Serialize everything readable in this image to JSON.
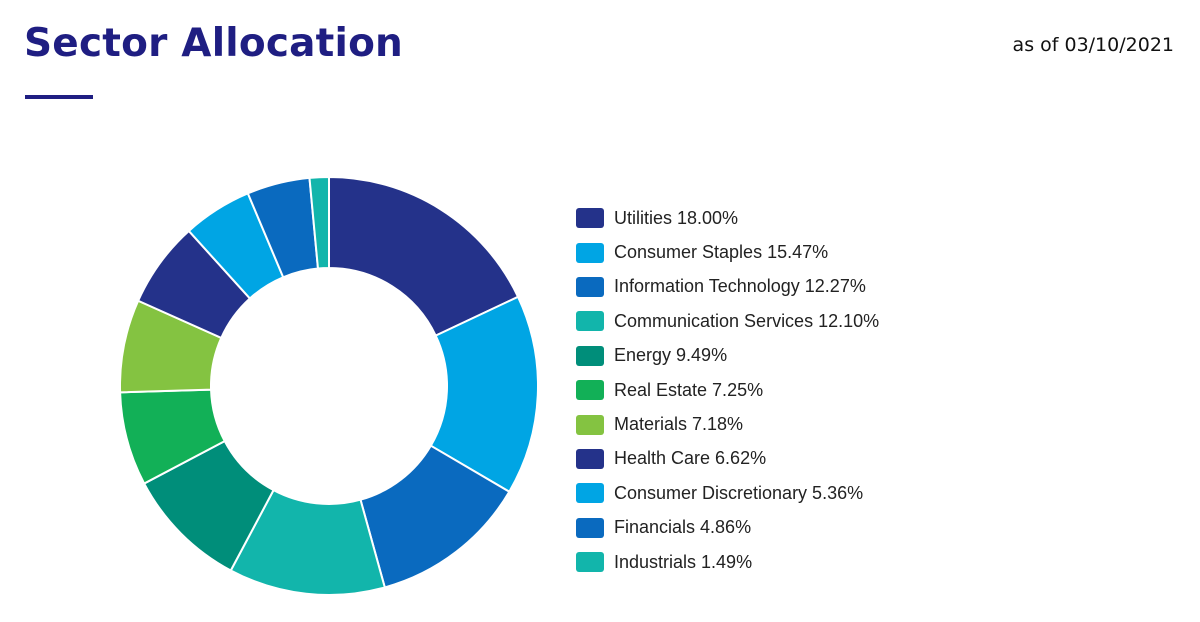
{
  "header": {
    "title": "Sector Allocation",
    "as_of": "as of 03/10/2021"
  },
  "chart_data": {
    "type": "pie",
    "title": "Sector Allocation",
    "donut": true,
    "legend_position": "right",
    "categories": [
      "Utilities",
      "Consumer Staples",
      "Information Technology",
      "Communication Services",
      "Energy",
      "Real Estate",
      "Materials",
      "Health Care",
      "Consumer Discretionary",
      "Financials",
      "Industrials"
    ],
    "values": [
      18.0,
      15.47,
      12.27,
      12.1,
      9.49,
      7.25,
      7.18,
      6.62,
      5.36,
      4.86,
      1.49
    ],
    "unit": "%",
    "legend_labels": [
      "Utilities 18.00%",
      "Consumer Staples 15.47%",
      "Information Technology 12.27%",
      "Communication Services 12.10%",
      "Energy 9.49%",
      "Real Estate 7.25%",
      "Materials 7.18%",
      "Health Care 6.62%",
      "Consumer Discretionary 5.36%",
      "Financials 4.86%",
      "Industrials 1.49%"
    ],
    "colors": [
      "#24328a",
      "#00a5e4",
      "#0a6abf",
      "#12b5ab",
      "#008e7a",
      "#12b057",
      "#84c341",
      "#24328a",
      "#00a5e4",
      "#0a6abf",
      "#12b5ab"
    ]
  }
}
